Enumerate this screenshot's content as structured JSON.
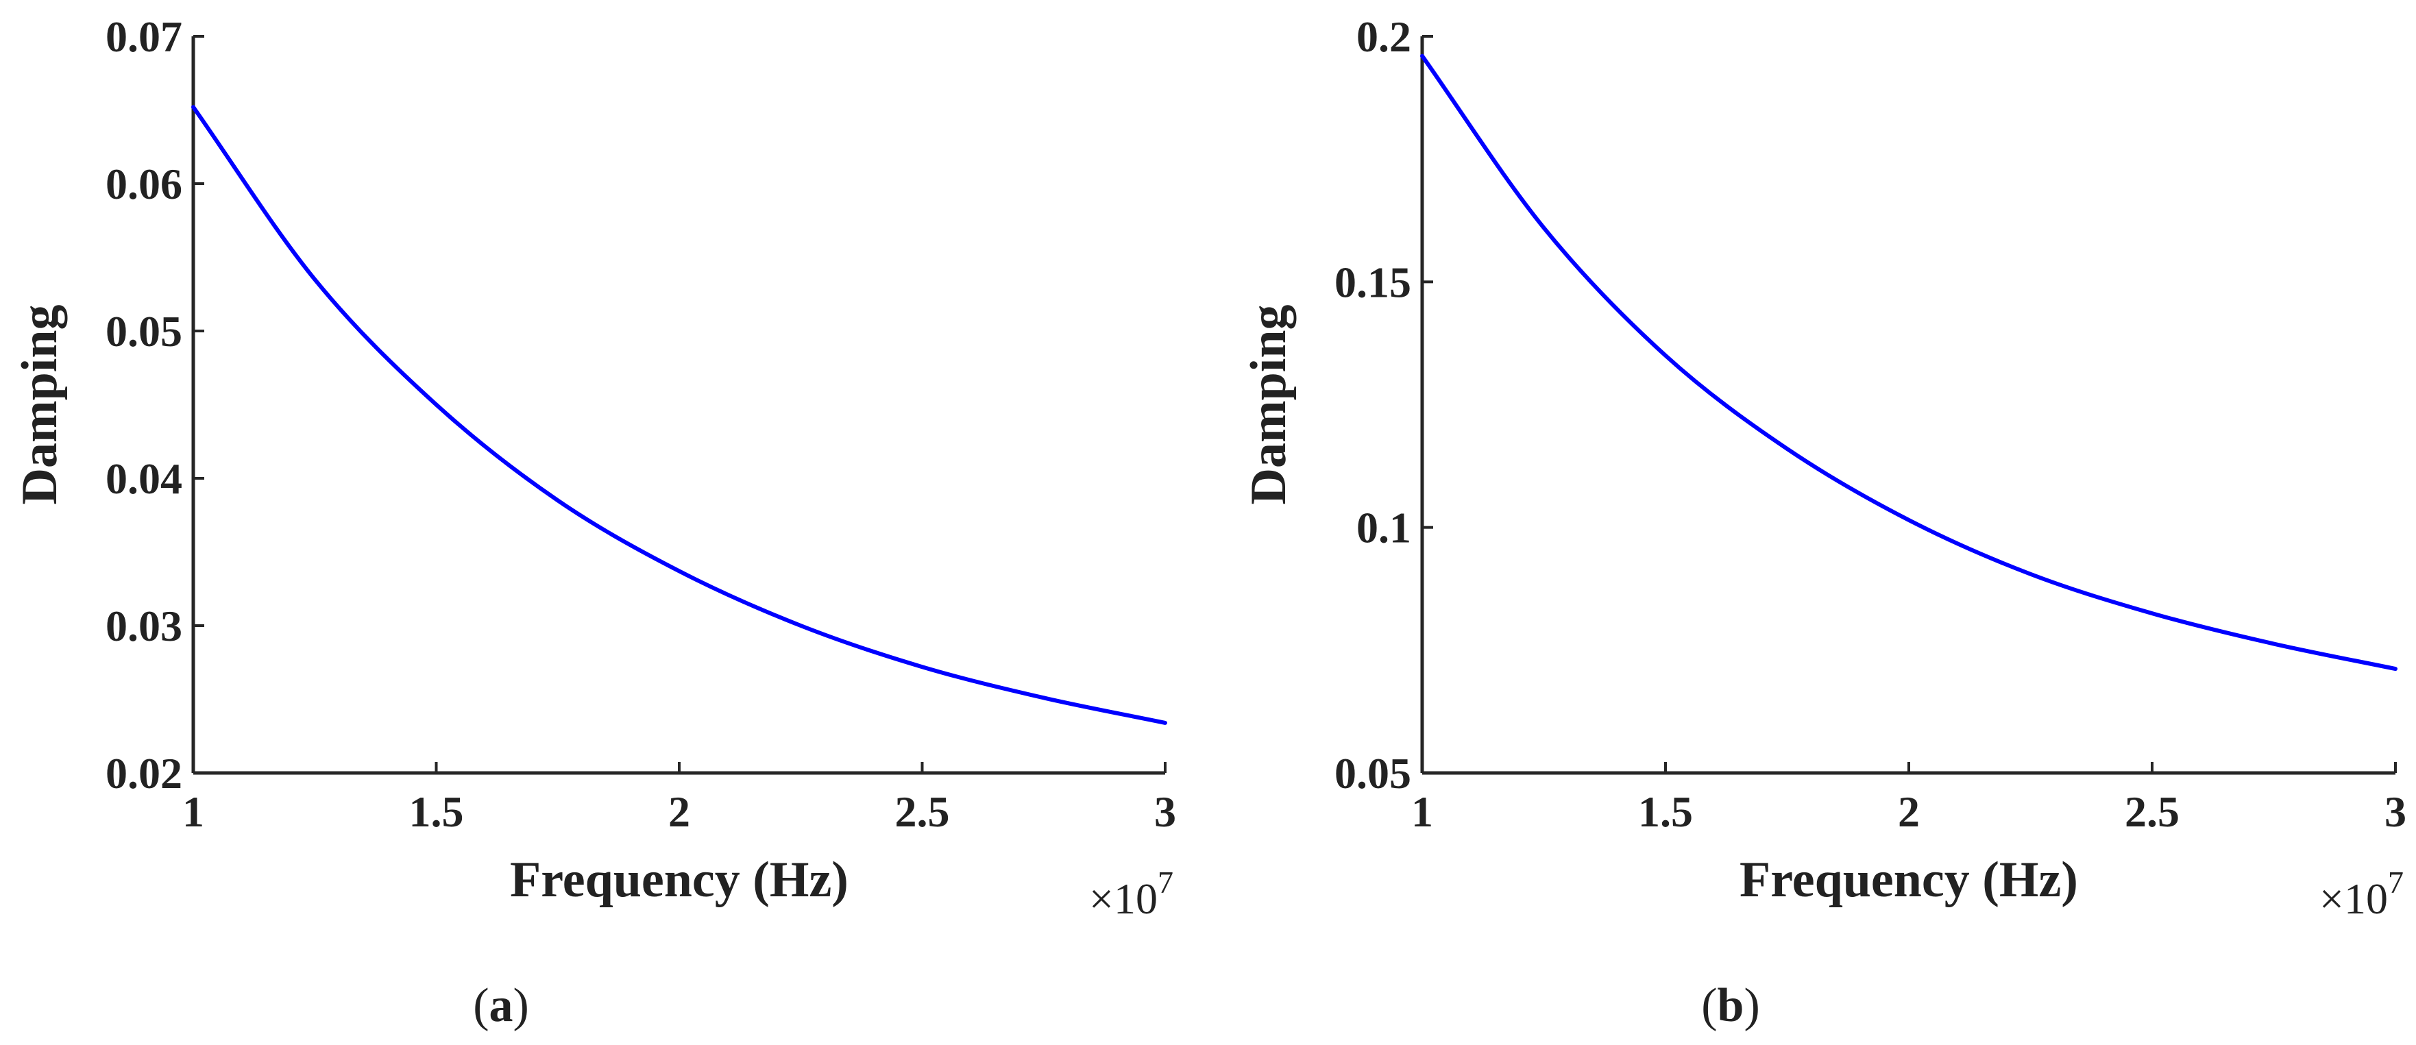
{
  "colors": {
    "line": "#0000ff",
    "axis": "#262626",
    "text": "#222222",
    "background": "#ffffff"
  },
  "chart_data": [
    {
      "type": "line",
      "panel_label": "a",
      "xlabel": "Frequency (Hz)",
      "ylabel": "Damping",
      "x_exponent_base": "×10",
      "x_exponent_power": "7",
      "xlim": [
        1,
        3
      ],
      "ylim": [
        0.02,
        0.07
      ],
      "x_ticks": [
        1,
        1.5,
        2,
        2.5,
        3
      ],
      "x_tick_labels": [
        "1",
        "1.5",
        "2",
        "2.5",
        "3"
      ],
      "y_ticks": [
        0.02,
        0.03,
        0.04,
        0.05,
        0.06,
        0.07
      ],
      "y_tick_labels": [
        "0.02",
        "0.03",
        "0.04",
        "0.05",
        "0.06",
        "0.07"
      ],
      "grid": false,
      "series": [
        {
          "color": "#0000ff",
          "x": [
            1.0,
            1.25,
            1.5,
            1.75,
            2.0,
            2.25,
            2.5,
            2.75,
            3.0
          ],
          "y": [
            0.0652,
            0.0535,
            0.045,
            0.0385,
            0.0337,
            0.03,
            0.0272,
            0.0251,
            0.0234
          ]
        }
      ]
    },
    {
      "type": "line",
      "panel_label": "b",
      "xlabel": "Frequency (Hz)",
      "ylabel": "Damping",
      "x_exponent_base": "×10",
      "x_exponent_power": "7",
      "xlim": [
        1,
        3
      ],
      "ylim": [
        0.05,
        0.2
      ],
      "x_ticks": [
        1,
        1.5,
        2,
        2.5,
        3
      ],
      "x_tick_labels": [
        "1",
        "1.5",
        "2",
        "2.5",
        "3"
      ],
      "y_ticks": [
        0.05,
        0.1,
        0.15,
        0.2
      ],
      "y_tick_labels": [
        "0.05",
        "0.1",
        "0.15",
        "0.2"
      ],
      "grid": false,
      "series": [
        {
          "color": "#0000ff",
          "x": [
            1.0,
            1.25,
            1.5,
            1.75,
            2.0,
            2.25,
            2.5,
            2.75,
            3.0
          ],
          "y": [
            0.196,
            0.161,
            0.135,
            0.116,
            0.1015,
            0.0905,
            0.0825,
            0.0763,
            0.0712
          ]
        }
      ]
    }
  ]
}
